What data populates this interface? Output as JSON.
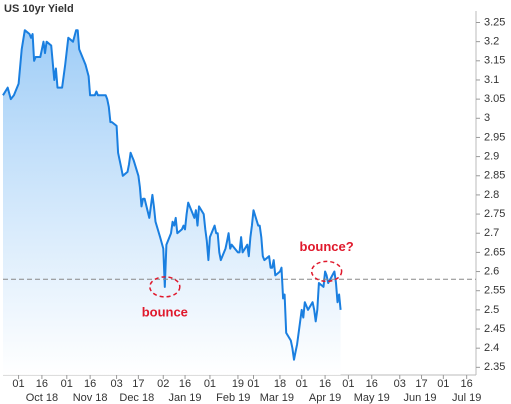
{
  "chart_data": {
    "type": "area-line",
    "title": "US 10yr Yield",
    "series": [
      {
        "name": "US 10yr Yield",
        "color": "#1a7fe0",
        "x": [
          "2018-09-21",
          "2018-09-24",
          "2018-09-26",
          "2018-09-28",
          "2018-10-01",
          "2018-10-03",
          "2018-10-05",
          "2018-10-08",
          "2018-10-09",
          "2018-10-10",
          "2018-10-11",
          "2018-10-12",
          "2018-10-15",
          "2018-10-17",
          "2018-10-18",
          "2018-10-19",
          "2018-10-22",
          "2018-10-24",
          "2018-10-25",
          "2018-10-26",
          "2018-10-29",
          "2018-10-31",
          "2018-11-02",
          "2018-11-05",
          "2018-11-07",
          "2018-11-08",
          "2018-11-09",
          "2018-11-13",
          "2018-11-15",
          "2018-11-16",
          "2018-11-19",
          "2018-11-20",
          "2018-11-21",
          "2018-11-26",
          "2018-11-27",
          "2018-11-28",
          "2018-11-29",
          "2018-11-30",
          "2018-12-03",
          "2018-12-04",
          "2018-12-06",
          "2018-12-07",
          "2018-12-10",
          "2018-12-11",
          "2018-12-12",
          "2018-12-13",
          "2018-12-14",
          "2018-12-17",
          "2018-12-18",
          "2018-12-19",
          "2018-12-20",
          "2018-12-21",
          "2018-12-24",
          "2018-12-26",
          "2018-12-27",
          "2018-12-28",
          "2018-12-31",
          "2019-01-02",
          "2019-01-03",
          "2019-01-04",
          "2019-01-07",
          "2019-01-08",
          "2019-01-09",
          "2019-01-10",
          "2019-01-11",
          "2019-01-14",
          "2019-01-15",
          "2019-01-16",
          "2019-01-17",
          "2019-01-18",
          "2019-01-22",
          "2019-01-23",
          "2019-01-24",
          "2019-01-25",
          "2019-01-28",
          "2019-01-29",
          "2019-01-30",
          "2019-01-31",
          "2019-02-01",
          "2019-02-04",
          "2019-02-05",
          "2019-02-06",
          "2019-02-07",
          "2019-02-08",
          "2019-02-11",
          "2019-02-12",
          "2019-02-13",
          "2019-02-14",
          "2019-02-15",
          "2019-02-19",
          "2019-02-20",
          "2019-02-21",
          "2019-02-22",
          "2019-02-25",
          "2019-02-26",
          "2019-02-27",
          "2019-02-28",
          "2019-03-01",
          "2019-03-04",
          "2019-03-05",
          "2019-03-06",
          "2019-03-07",
          "2019-03-08",
          "2019-03-11",
          "2019-03-12",
          "2019-03-13",
          "2019-03-14",
          "2019-03-15",
          "2019-03-18",
          "2019-03-19",
          "2019-03-20",
          "2019-03-21",
          "2019-03-22",
          "2019-03-25",
          "2019-03-26",
          "2019-03-27",
          "2019-03-28",
          "2019-03-29",
          "2019-04-01",
          "2019-04-02",
          "2019-04-03",
          "2019-04-04",
          "2019-04-05",
          "2019-04-08",
          "2019-04-09",
          "2019-04-10",
          "2019-04-11",
          "2019-04-12",
          "2019-04-15",
          "2019-04-16",
          "2019-04-17",
          "2019-04-18",
          "2019-04-22",
          "2019-04-23",
          "2019-04-24",
          "2019-04-25",
          "2019-04-26"
        ],
        "values": [
          3.06,
          3.08,
          3.05,
          3.06,
          3.09,
          3.18,
          3.23,
          3.22,
          3.21,
          3.22,
          3.15,
          3.16,
          3.16,
          3.2,
          3.17,
          3.2,
          3.19,
          3.1,
          3.13,
          3.08,
          3.08,
          3.14,
          3.21,
          3.2,
          3.23,
          3.23,
          3.18,
          3.14,
          3.11,
          3.06,
          3.06,
          3.07,
          3.06,
          3.06,
          3.05,
          3.03,
          2.99,
          2.99,
          2.98,
          2.91,
          2.87,
          2.85,
          2.86,
          2.88,
          2.91,
          2.9,
          2.89,
          2.85,
          2.82,
          2.77,
          2.79,
          2.79,
          2.74,
          2.8,
          2.77,
          2.73,
          2.69,
          2.66,
          2.56,
          2.67,
          2.7,
          2.73,
          2.72,
          2.74,
          2.7,
          2.71,
          2.72,
          2.71,
          2.75,
          2.78,
          2.74,
          2.76,
          2.72,
          2.77,
          2.75,
          2.71,
          2.68,
          2.63,
          2.69,
          2.72,
          2.7,
          2.7,
          2.65,
          2.63,
          2.66,
          2.68,
          2.7,
          2.66,
          2.67,
          2.65,
          2.65,
          2.69,
          2.65,
          2.67,
          2.64,
          2.69,
          2.72,
          2.76,
          2.72,
          2.72,
          2.69,
          2.64,
          2.63,
          2.64,
          2.61,
          2.61,
          2.63,
          2.59,
          2.6,
          2.61,
          2.53,
          2.54,
          2.44,
          2.42,
          2.4,
          2.37,
          2.39,
          2.41,
          2.5,
          2.48,
          2.52,
          2.51,
          2.5,
          2.52,
          2.5,
          2.47,
          2.5,
          2.57,
          2.56,
          2.6,
          2.59,
          2.57,
          2.6,
          2.57,
          2.52,
          2.54,
          2.5
        ]
      }
    ],
    "xlim": [
      "2018-09-21",
      "2019-07-22"
    ],
    "xticks": [
      {
        "value": "2018-10-01",
        "label": "01"
      },
      {
        "value": "2018-10-16",
        "label": "16"
      },
      {
        "value": "2018-11-01",
        "label": "01"
      },
      {
        "value": "2018-11-16",
        "label": "16"
      },
      {
        "value": "2018-12-03",
        "label": "03"
      },
      {
        "value": "2018-12-17",
        "label": "17"
      },
      {
        "value": "2019-01-02",
        "label": "02"
      },
      {
        "value": "2019-01-16",
        "label": "16"
      },
      {
        "value": "2019-02-01",
        "label": "01"
      },
      {
        "value": "2019-02-19",
        "label": "19"
      },
      {
        "value": "2019-03-01",
        "label": "01"
      },
      {
        "value": "2019-03-18",
        "label": "18"
      },
      {
        "value": "2019-04-01",
        "label": "01"
      },
      {
        "value": "2019-04-16",
        "label": "16"
      },
      {
        "value": "2019-05-01",
        "label": "01"
      },
      {
        "value": "2019-05-16",
        "label": "16"
      },
      {
        "value": "2019-06-03",
        "label": "03"
      },
      {
        "value": "2019-06-17",
        "label": "17"
      },
      {
        "value": "2019-07-01",
        "label": "01"
      },
      {
        "value": "2019-07-16",
        "label": "16"
      }
    ],
    "month_labels": [
      {
        "value": "2018-10-16",
        "label": "Oct 18"
      },
      {
        "value": "2018-11-16",
        "label": "Nov 18"
      },
      {
        "value": "2018-12-16",
        "label": "Dec 18"
      },
      {
        "value": "2019-01-16",
        "label": "Jan 19"
      },
      {
        "value": "2019-02-16",
        "label": "Feb 19"
      },
      {
        "value": "2019-03-16",
        "label": "Mar 19"
      },
      {
        "value": "2019-04-16",
        "label": "Apr 19"
      },
      {
        "value": "2019-05-16",
        "label": "May 19"
      },
      {
        "value": "2019-06-16",
        "label": "Jun 19"
      },
      {
        "value": "2019-07-16",
        "label": "Jul 19"
      }
    ],
    "ylim": [
      2.33,
      3.28
    ],
    "yticks": [
      2.35,
      2.4,
      2.45,
      2.5,
      2.55,
      2.6,
      2.65,
      2.7,
      2.75,
      2.8,
      2.85,
      2.9,
      2.95,
      3,
      3.05,
      3.1,
      3.15,
      3.2,
      3.25
    ],
    "reference_line": 2.58,
    "annotations": [
      {
        "text": "bounce",
        "x": "2019-01-03",
        "position": "below",
        "color": "#e0192c"
      },
      {
        "text": "bounce?",
        "x": "2019-04-17",
        "position": "above",
        "color": "#e0192c"
      }
    ]
  }
}
